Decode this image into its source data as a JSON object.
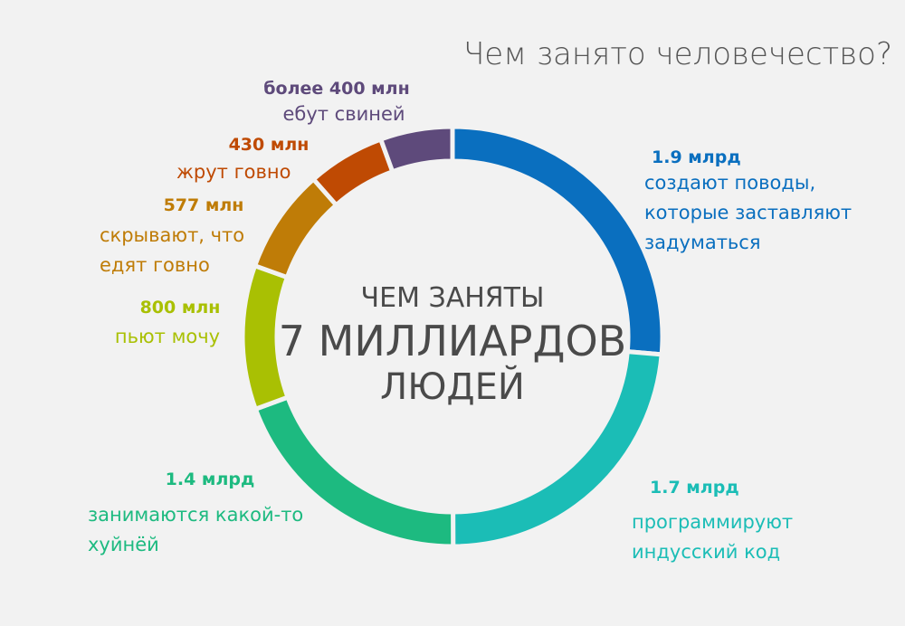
{
  "chart_data": {
    "type": "donut",
    "title": "Чем занято человечество?",
    "center_label": [
      "ЧЕМ ЗАНЯТЫ",
      "7 МИЛЛИАРДОВ",
      "ЛЮДЕЙ"
    ],
    "categories": [
      "создают поводы,\nкоторые заставляют\nзадуматься",
      "программируют\nиндусский код",
      "занимаются какой-то\nхуйнёй",
      "пьют мочу",
      "скрывают, что\nедят говно",
      "жрут говно",
      "ебут свиней"
    ],
    "values": [
      1900,
      1700,
      1400,
      800,
      577,
      430,
      400
    ],
    "value_labels": [
      "1.9 млрд",
      "1.7 млрд",
      "1.4 млрд",
      "800 млн",
      "577 млн",
      "430 млн",
      "более 400 млн"
    ],
    "colors": [
      "#0a6fbf",
      "#1bbdb6",
      "#1dba80",
      "#a9c003",
      "#bf7c07",
      "#bf4a03",
      "#5e4a7b"
    ]
  }
}
